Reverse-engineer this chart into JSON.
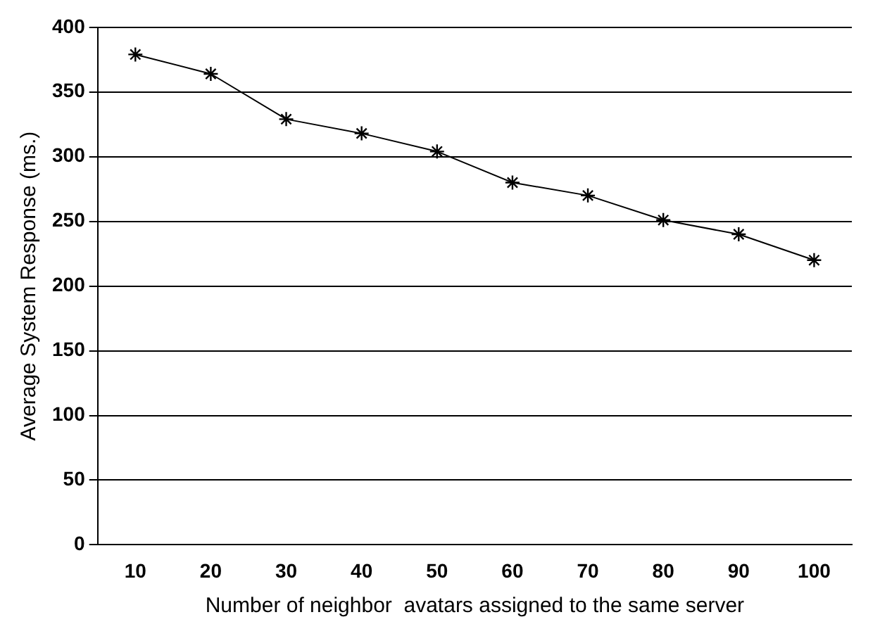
{
  "chart_data": {
    "type": "line",
    "xlabel": "Number of neighbor  avatars assigned to the same server",
    "ylabel": "Average System Response (ms.)",
    "categories": [
      "10",
      "20",
      "30",
      "40",
      "50",
      "60",
      "70",
      "80",
      "90",
      "100"
    ],
    "series": [
      {
        "color": "#000000",
        "values": [
          379,
          364,
          329,
          318,
          304,
          280,
          270,
          251,
          240,
          220
        ]
      }
    ],
    "ylim": [
      0,
      400
    ],
    "yticks": [
      0,
      50,
      100,
      150,
      200,
      250,
      300,
      350,
      400
    ],
    "grid": "y",
    "legend": false,
    "marker": "cross",
    "line_style": "solid"
  }
}
